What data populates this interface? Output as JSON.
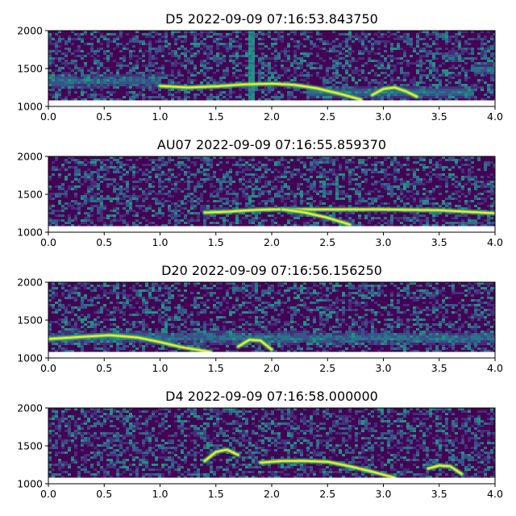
{
  "colors": {
    "colormap": "viridis",
    "background_dark": "#440154",
    "trace_bright": "#fde725",
    "axis": "#000000"
  },
  "chart_data": [
    {
      "type": "heatmap",
      "title": "D5 2022-09-09 07:16:53.843750",
      "xlim": [
        0.0,
        4.0
      ],
      "ylim": [
        1000,
        2000
      ],
      "xticks": [
        "0.0",
        "0.5",
        "1.0",
        "1.5",
        "2.0",
        "2.5",
        "3.0",
        "3.5",
        "4.0"
      ],
      "yticks": [
        "1000",
        "1500",
        "2000"
      ],
      "traces": [
        {
          "x": [
            1.0,
            1.25,
            1.5,
            1.75,
            2.0,
            2.2,
            2.4,
            2.6,
            2.8
          ],
          "y": [
            1270,
            1250,
            1265,
            1290,
            1300,
            1285,
            1240,
            1170,
            1090
          ]
        },
        {
          "x": [
            2.9,
            3.0,
            3.1,
            3.2,
            3.3
          ],
          "y": [
            1150,
            1230,
            1250,
            1200,
            1130
          ]
        }
      ],
      "bands": [
        {
          "x": [
            0.0,
            1.0
          ],
          "y": 1350
        },
        {
          "x": [
            2.3,
            3.8
          ],
          "y": 1200
        },
        {
          "x": [
            3.8,
            4.0
          ],
          "y": 1500
        }
      ],
      "spikes": [
        1.8
      ]
    },
    {
      "type": "heatmap",
      "title": "AU07 2022-09-09 07:16:55.859370",
      "xlim": [
        0.0,
        4.0
      ],
      "ylim": [
        1000,
        2000
      ],
      "xticks": [
        "0.0",
        "0.5",
        "1.0",
        "1.5",
        "2.0",
        "2.5",
        "3.0",
        "3.5",
        "4.0"
      ],
      "yticks": [
        "1000",
        "1500",
        "2000"
      ],
      "traces": [
        {
          "x": [
            1.4,
            1.6,
            1.8,
            2.0,
            2.2,
            2.5,
            3.0,
            3.5,
            4.0
          ],
          "y": [
            1260,
            1270,
            1290,
            1300,
            1300,
            1300,
            1300,
            1290,
            1250
          ]
        },
        {
          "x": [
            2.1,
            2.3,
            2.5,
            2.7
          ],
          "y": [
            1300,
            1260,
            1190,
            1100
          ]
        }
      ],
      "bands": [],
      "spikes": []
    },
    {
      "type": "heatmap",
      "title": "D20 2022-09-09 07:16:56.156250",
      "xlim": [
        0.0,
        4.0
      ],
      "ylim": [
        1000,
        2000
      ],
      "xticks": [
        "0.0",
        "0.5",
        "1.0",
        "1.5",
        "2.0",
        "2.5",
        "3.0",
        "3.5",
        "4.0"
      ],
      "yticks": [
        "1000",
        "1500",
        "2000"
      ],
      "traces": [
        {
          "x": [
            0.0,
            0.3,
            0.55,
            0.8,
            1.0,
            1.2,
            1.45
          ],
          "y": [
            1250,
            1280,
            1300,
            1270,
            1210,
            1140,
            1080
          ]
        },
        {
          "x": [
            1.7,
            1.8,
            1.9,
            2.0
          ],
          "y": [
            1150,
            1240,
            1230,
            1110
          ]
        }
      ],
      "bands": [
        {
          "x": [
            0.0,
            4.0
          ],
          "y": 1280
        }
      ],
      "spikes": []
    },
    {
      "type": "heatmap",
      "title": "D4 2022-09-09 07:16:58.000000",
      "xlim": [
        0.0,
        4.0
      ],
      "ylim": [
        1000,
        2000
      ],
      "xticks": [
        "0.0",
        "0.5",
        "1.0",
        "1.5",
        "2.0",
        "2.5",
        "3.0",
        "3.5",
        "4.0"
      ],
      "yticks": [
        "1000",
        "1500",
        "2000"
      ],
      "traces": [
        {
          "x": [
            1.9,
            2.1,
            2.3,
            2.5,
            2.7,
            2.9,
            3.1
          ],
          "y": [
            1280,
            1300,
            1300,
            1290,
            1230,
            1160,
            1080
          ]
        },
        {
          "x": [
            3.4,
            3.5,
            3.6,
            3.7
          ],
          "y": [
            1200,
            1240,
            1230,
            1130
          ]
        },
        {
          "x": [
            1.4,
            1.5,
            1.6,
            1.7
          ],
          "y": [
            1300,
            1420,
            1450,
            1380
          ]
        }
      ],
      "bands": [],
      "spikes": []
    }
  ]
}
